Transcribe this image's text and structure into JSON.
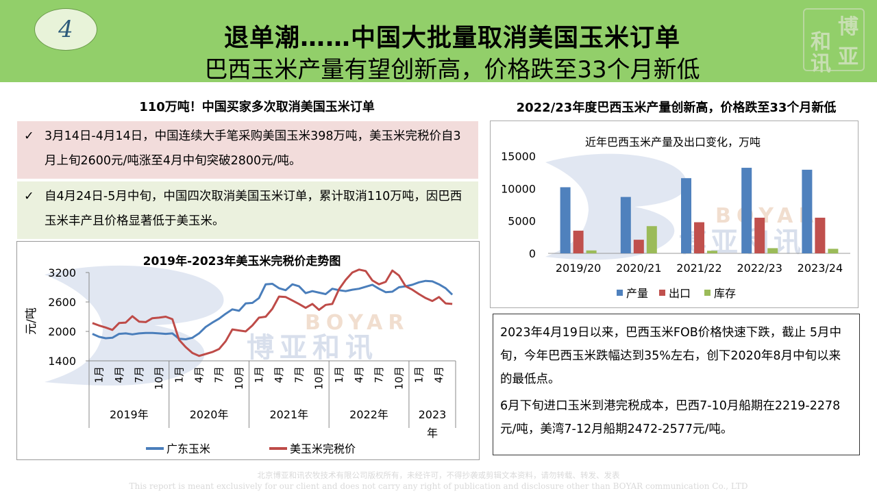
{
  "header": {
    "page_number": "4",
    "title_line1": "退单潮……中国大批量取消美国玉米订单",
    "title_line2": "巴西玉米产量有望创新高，价格跌至33个月新低",
    "logo_text": "和博讯亚"
  },
  "left": {
    "section_title": "110万吨！中国买家多次取消美国玉米订单",
    "bullets": [
      {
        "check": "✓",
        "text": "3月14日-4月14日，中国连续大手笔采购美国玉米398万吨，美玉米完税价自3月上旬2600元/吨涨至4月中旬突破2800元/吨。"
      },
      {
        "check": "✓",
        "text": "自4月24日-5月中旬，中国四次取消美国玉米订单，累计取消110万吨，因巴西玉米丰产且价格显著低于美玉米。"
      }
    ]
  },
  "right": {
    "section_title": "2022/23年度巴西玉米产量创新高，价格跌至33个月新低",
    "notes": [
      "2023年4月19日以来，巴西玉米FOB价格快速下跌，截止 5月中旬，今年巴西玉米跌幅达到35%左右，创下2020年8月中旬以来的最低点。",
      "6月下旬进口玉米到港完税成本，巴西7-10月船期在2219-2278元/吨，美湾7-12月船期2472-2577元/吨。"
    ]
  },
  "watermark": {
    "en": "BOYAR",
    "cn": "博亚和讯"
  },
  "footer": {
    "line1": "北京博亚和讯农牧技术有限公司版权所有，未经许可，不得抄袭或剪辑文本资料，请勿转载、转发、发表",
    "line2": "This report is meant exclusively for our client and does not carry any right of publication and disclosure other than BOYAR communication Co., LTD"
  },
  "chart_data": [
    {
      "id": "line",
      "type": "line",
      "title": "2019年-2023年美玉米完税价走势图",
      "ylabel": "元/吨",
      "ylim": [
        1400,
        3200
      ],
      "yticks": [
        1400,
        2000,
        2600,
        3200
      ],
      "n_points": 55,
      "x_tick_labels": [
        {
          "i": 1,
          "label": "1月"
        },
        {
          "i": 4,
          "label": "4月"
        },
        {
          "i": 7,
          "label": "7月"
        },
        {
          "i": 10,
          "label": "10月"
        },
        {
          "i": 13,
          "label": "1月"
        },
        {
          "i": 16,
          "label": "4月"
        },
        {
          "i": 19,
          "label": "7月"
        },
        {
          "i": 22,
          "label": "10月"
        },
        {
          "i": 25,
          "label": "1月"
        },
        {
          "i": 28,
          "label": "4月"
        },
        {
          "i": 31,
          "label": "7月"
        },
        {
          "i": 34,
          "label": "10月"
        },
        {
          "i": 37,
          "label": "1月"
        },
        {
          "i": 40,
          "label": "4月"
        },
        {
          "i": 43,
          "label": "7月"
        },
        {
          "i": 46,
          "label": "10月"
        },
        {
          "i": 49,
          "label": "1月"
        },
        {
          "i": 52,
          "label": "4月"
        }
      ],
      "year_groups": [
        {
          "label": "2019年",
          "start": 0,
          "end": 11
        },
        {
          "label": "2020年",
          "start": 12,
          "end": 23
        },
        {
          "label": "2021年",
          "start": 24,
          "end": 35
        },
        {
          "label": "2022年",
          "start": 36,
          "end": 47
        },
        {
          "label": "2023年",
          "start": 48,
          "end": 54
        }
      ],
      "series": [
        {
          "name": "广东玉米",
          "color": "#4a7ebb",
          "values": [
            1950,
            1890,
            1860,
            1870,
            1950,
            1960,
            1940,
            1960,
            1970,
            1970,
            1960,
            1950,
            1960,
            1850,
            1840,
            1870,
            1960,
            2090,
            2180,
            2260,
            2360,
            2450,
            2420,
            2570,
            2580,
            2680,
            2960,
            2970,
            2880,
            2840,
            2960,
            2920,
            2780,
            2820,
            2790,
            2760,
            2870,
            2840,
            2820,
            2850,
            2870,
            2910,
            2950,
            2870,
            2800,
            2810,
            2900,
            2920,
            2950,
            3000,
            3030,
            3020,
            2960,
            2880,
            2750
          ]
        },
        {
          "name": "美玉米完税价",
          "color": "#be4b48",
          "values": [
            2170,
            2120,
            2080,
            2030,
            2170,
            2180,
            2310,
            2200,
            2190,
            2270,
            2280,
            2300,
            2250,
            1830,
            1680,
            1560,
            1500,
            1540,
            1580,
            1640,
            1800,
            2040,
            2020,
            2000,
            2120,
            2280,
            2300,
            2460,
            2710,
            2700,
            2630,
            2560,
            2480,
            2560,
            2440,
            2540,
            2560,
            2860,
            3050,
            3200,
            3260,
            3230,
            3040,
            2960,
            3010,
            3240,
            3140,
            2920,
            2850,
            2760,
            2680,
            2620,
            2700,
            2570,
            2560
          ]
        }
      ]
    },
    {
      "id": "bar",
      "type": "bar",
      "title": "近年巴西玉米产量及出口变化，万吨",
      "categories": [
        "2019/20",
        "2020/21",
        "2021/22",
        "2022/23",
        "2023/24"
      ],
      "ylim": [
        0,
        15000
      ],
      "yticks": [
        0,
        5000,
        10000,
        15000
      ],
      "series": [
        {
          "name": "产量",
          "color": "#4f81bd",
          "values": [
            10200,
            8700,
            11600,
            13200,
            12900
          ]
        },
        {
          "name": "出口",
          "color": "#c0504d",
          "values": [
            3500,
            2100,
            4800,
            5500,
            5500
          ]
        },
        {
          "name": "库存",
          "color": "#9bbb59",
          "values": [
            450,
            4200,
            400,
            800,
            700
          ]
        }
      ]
    }
  ]
}
